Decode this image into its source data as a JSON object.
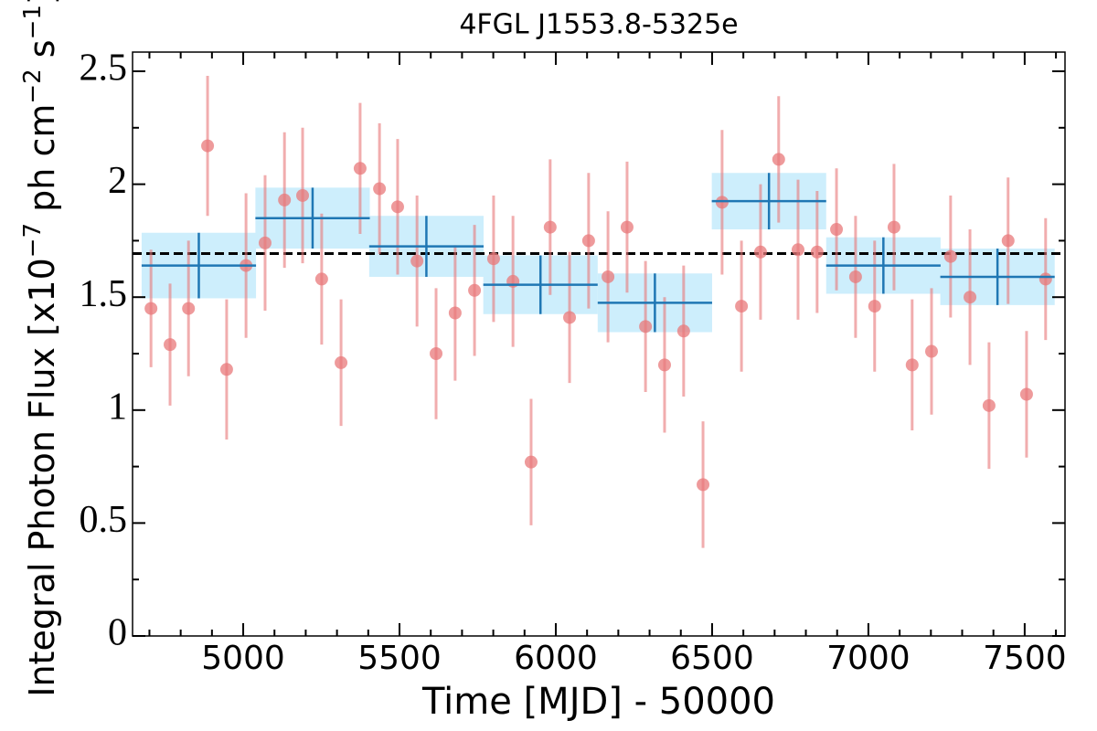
{
  "chart_data": {
    "type": "errorbar",
    "title": "4FGL J1553.8-5325e",
    "xlabel": "Time [MJD] - 50000",
    "ylabel_parts": [
      "Integral Photon Flux [x10",
      "−7",
      " ph cm",
      "−2",
      " s",
      "−1",
      "]"
    ],
    "ylabel_superscript": [
      false,
      true,
      false,
      true,
      false,
      true,
      false
    ],
    "xlim": [
      4646,
      7629
    ],
    "ylim": [
      0,
      2.585
    ],
    "xticks": [
      5000,
      5500,
      6000,
      6500,
      7000,
      7500
    ],
    "yticks": [
      0,
      0.5,
      1,
      1.5,
      2,
      2.5
    ],
    "xminorticks": [
      4700,
      4800,
      4900,
      5100,
      5200,
      5300,
      5400,
      5600,
      5700,
      5800,
      5900,
      6100,
      6200,
      6300,
      6400,
      6600,
      6700,
      6800,
      6900,
      7100,
      7200,
      7300,
      7400,
      7600
    ],
    "yminorticks": [
      0.25,
      0.75,
      1.25,
      1.75,
      2.25
    ],
    "points": {
      "color": "#e8787a",
      "x": [
        4705,
        4766,
        4825,
        4886,
        4947,
        5009,
        5070,
        5132,
        5190,
        5251,
        5313,
        5374,
        5436,
        5494,
        5556,
        5617,
        5678,
        5740,
        5801,
        5863,
        5921,
        5982,
        6044,
        6105,
        6167,
        6228,
        6287,
        6348,
        6409,
        6471,
        6532,
        6594,
        6655,
        6713,
        6775,
        6836,
        6898,
        6959,
        7020,
        7082,
        7140,
        7202,
        7263,
        7325,
        7386,
        7447,
        7506,
        7567
      ],
      "y": [
        1.45,
        1.29,
        1.45,
        2.17,
        1.18,
        1.64,
        1.74,
        1.93,
        1.95,
        1.58,
        1.21,
        2.07,
        1.98,
        1.9,
        1.66,
        1.25,
        1.43,
        1.53,
        1.67,
        1.57,
        0.77,
        1.81,
        1.41,
        1.75,
        1.59,
        1.81,
        1.37,
        1.2,
        1.35,
        0.67,
        1.92,
        1.46,
        1.7,
        2.11,
        1.71,
        1.7,
        1.8,
        1.59,
        1.46,
        1.81,
        1.2,
        1.26,
        1.68,
        1.5,
        1.02,
        1.75,
        1.07,
        1.58
      ],
      "yerr": [
        0.26,
        0.27,
        0.3,
        0.31,
        0.31,
        0.32,
        0.3,
        0.3,
        0.3,
        0.29,
        0.28,
        0.29,
        0.29,
        0.3,
        0.29,
        0.29,
        0.3,
        0.29,
        0.28,
        0.29,
        0.28,
        0.3,
        0.29,
        0.3,
        0.29,
        0.29,
        0.29,
        0.3,
        0.29,
        0.28,
        0.32,
        0.29,
        0.3,
        0.28,
        0.31,
        0.27,
        0.27,
        0.27,
        0.29,
        0.28,
        0.29,
        0.28,
        0.27,
        0.3,
        0.28,
        0.28,
        0.28,
        0.27
      ]
    },
    "bins": {
      "color": "#1f77b4",
      "box_color": "#cdeefc",
      "x": [
        4858,
        5222,
        5586,
        5951,
        6317,
        6682,
        7048,
        7413
      ],
      "xerr": [
        183,
        183,
        183,
        183,
        183,
        183,
        183,
        183
      ],
      "y": [
        1.64,
        1.85,
        1.725,
        1.555,
        1.475,
        1.925,
        1.64,
        1.59
      ],
      "yerr": [
        0.145,
        0.135,
        0.135,
        0.13,
        0.13,
        0.125,
        0.125,
        0.125
      ]
    },
    "hline": 1.693
  }
}
